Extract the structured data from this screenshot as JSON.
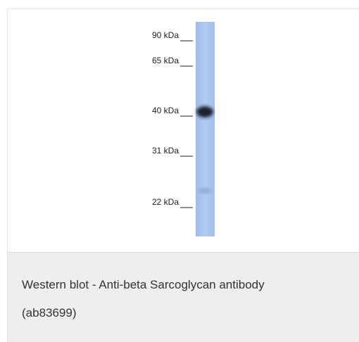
{
  "blot": {
    "markers": [
      "90 kDa",
      "65 kDa",
      "40 kDa",
      "31 kDa",
      "22 kDa"
    ]
  },
  "caption": {
    "lines": [
      "Western blot - Anti-beta Sarcoglycan antibody",
      "(ab83699)"
    ]
  }
}
